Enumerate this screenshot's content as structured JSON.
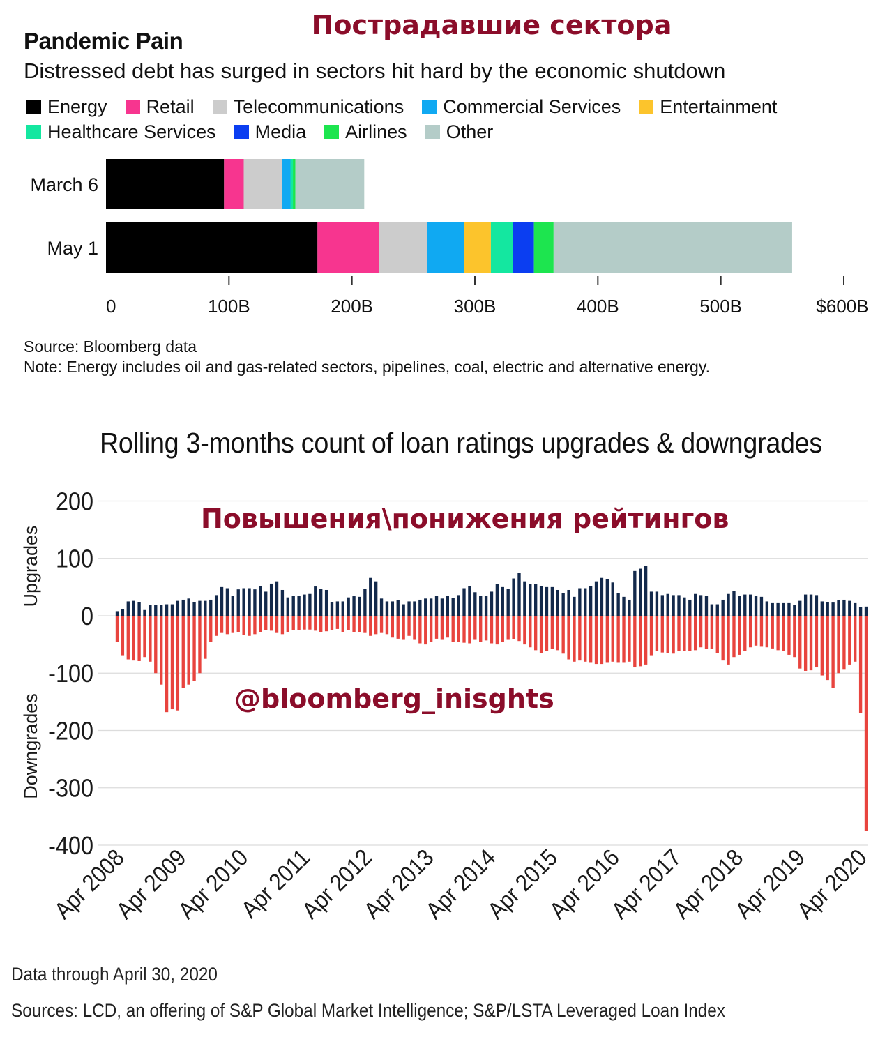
{
  "overlay": {
    "ru_title_top": "Пострадавшие сектора",
    "ru_title_mid": "Повышения\\понижения рейтингов",
    "handle": "@bloomberg_inisghts"
  },
  "chart1": {
    "title": "Pandemic Pain",
    "subtitle": "Distressed debt has surged in sectors hit hard by the economic shutdown",
    "source": "Source: Bloomberg data",
    "note": "Note: Energy includes oil and gas-related sectors, pipelines, coal, electric and alternative energy."
  },
  "chart2": {
    "title": "Rolling 3-months count of loan ratings upgrades & downgrades",
    "footer_1": "Data through April 30, 2020",
    "footer_2": "Sources: LCD,  an offering of S&P  Global Market Intelligence; S&P/LSTA  Leveraged Loan Index"
  },
  "chart_data": [
    {
      "type": "bar",
      "orientation": "horizontal",
      "stacked": true,
      "title": "Pandemic Pain",
      "subtitle": "Distressed debt has surged in sectors hit hard by the economic shutdown",
      "categories": [
        "March 6",
        "May 1"
      ],
      "xlim": [
        0,
        600
      ],
      "x_ticks": [
        0,
        100,
        200,
        300,
        400,
        500,
        600
      ],
      "x_tick_labels": [
        "0",
        "100B",
        "200B",
        "300B",
        "400B",
        "500B",
        "$600B"
      ],
      "legend_position": "top",
      "series": [
        {
          "name": "Energy",
          "color": "#000000",
          "values": [
            96,
            172
          ]
        },
        {
          "name": "Retail",
          "color": "#f7358f",
          "values": [
            16,
            50
          ]
        },
        {
          "name": "Telecommunications",
          "color": "#cccccc",
          "values": [
            31,
            39
          ]
        },
        {
          "name": "Commercial Services",
          "color": "#10a9f2",
          "values": [
            7,
            30
          ]
        },
        {
          "name": "Entertainment",
          "color": "#fcc42c",
          "values": [
            0,
            22
          ]
        },
        {
          "name": "Healthcare Services",
          "color": "#14e7a0",
          "values": [
            2,
            18
          ]
        },
        {
          "name": "Media",
          "color": "#0b3ef1",
          "values": [
            0,
            17
          ]
        },
        {
          "name": "Airlines",
          "color": "#1de54f",
          "values": [
            2,
            16
          ]
        },
        {
          "name": "Other",
          "color": "#b4ccc8",
          "values": [
            56,
            194
          ]
        }
      ]
    },
    {
      "type": "bar",
      "title": "Rolling 3-months count of loan ratings upgrades & downgrades",
      "ylabel_upper": "Upgrades",
      "ylabel_lower": "Downgrades",
      "ylim": [
        -400,
        200
      ],
      "y_ticks": [
        200,
        100,
        0,
        -100,
        -200,
        -300,
        -400
      ],
      "y_tick_labels": [
        "200",
        "100",
        "0",
        "-100",
        "-200",
        "-300",
        "-400"
      ],
      "x_tick_labels": [
        "Apr 2008",
        "Apr 2009",
        "Apr 2010",
        "Apr 2011",
        "Apr 2012",
        "Apr 2013",
        "Apr 2014",
        "Apr 2015",
        "Apr 2016",
        "Apr 2017",
        "Apr 2018",
        "Apr 2019",
        "Apr 2020"
      ],
      "period": "monthly, Apr 2008 – Apr 2020",
      "grid": true,
      "series": [
        {
          "name": "Upgrades",
          "color": "#13294b",
          "values": [
            8,
            12,
            25,
            26,
            24,
            10,
            19,
            19,
            19,
            20,
            20,
            26,
            28,
            30,
            24,
            26,
            26,
            28,
            36,
            50,
            48,
            35,
            46,
            48,
            48,
            46,
            52,
            42,
            56,
            60,
            45,
            32,
            35,
            35,
            37,
            38,
            51,
            47,
            45,
            24,
            25,
            25,
            32,
            34,
            33,
            47,
            66,
            60,
            30,
            25,
            25,
            27,
            20,
            25,
            25,
            28,
            30,
            30,
            35,
            30,
            35,
            31,
            36,
            48,
            52,
            41,
            35,
            35,
            42,
            55,
            50,
            47,
            65,
            75,
            60,
            55,
            55,
            52,
            50,
            50,
            45,
            40,
            45,
            33,
            48,
            48,
            52,
            60,
            66,
            64,
            58,
            40,
            33,
            28,
            78,
            82,
            87,
            42,
            42,
            36,
            38,
            36,
            36,
            32,
            28,
            38,
            36,
            35,
            20,
            20,
            28,
            38,
            43,
            35,
            37,
            37,
            35,
            33,
            25,
            22,
            22,
            22,
            22,
            19,
            26,
            37,
            37,
            36,
            25,
            24,
            23,
            27,
            28,
            26,
            22,
            15,
            16
          ]
        },
        {
          "name": "Downgrades",
          "color": "#e8443e",
          "values": [
            -45,
            -70,
            -76,
            -78,
            -79,
            -72,
            -80,
            -100,
            -120,
            -168,
            -163,
            -165,
            -126,
            -120,
            -114,
            -100,
            -75,
            -45,
            -35,
            -30,
            -32,
            -30,
            -28,
            -33,
            -35,
            -32,
            -28,
            -25,
            -26,
            -30,
            -32,
            -28,
            -25,
            -25,
            -24,
            -24,
            -26,
            -28,
            -27,
            -25,
            -23,
            -28,
            -25,
            -28,
            -28,
            -30,
            -35,
            -32,
            -30,
            -32,
            -38,
            -40,
            -42,
            -35,
            -42,
            -48,
            -50,
            -45,
            -40,
            -42,
            -38,
            -45,
            -46,
            -47,
            -48,
            -42,
            -45,
            -43,
            -48,
            -50,
            -45,
            -42,
            -41,
            -44,
            -50,
            -55,
            -60,
            -65,
            -62,
            -58,
            -60,
            -66,
            -76,
            -80,
            -78,
            -80,
            -82,
            -84,
            -84,
            -82,
            -80,
            -82,
            -82,
            -80,
            -90,
            -88,
            -85,
            -70,
            -62,
            -64,
            -65,
            -66,
            -62,
            -62,
            -62,
            -60,
            -55,
            -58,
            -58,
            -65,
            -78,
            -85,
            -72,
            -68,
            -62,
            -55,
            -52,
            -54,
            -55,
            -57,
            -60,
            -62,
            -68,
            -72,
            -92,
            -96,
            -95,
            -90,
            -104,
            -112,
            -126,
            -100,
            -94,
            -85,
            -80,
            -170,
            -375
          ]
        }
      ]
    }
  ]
}
